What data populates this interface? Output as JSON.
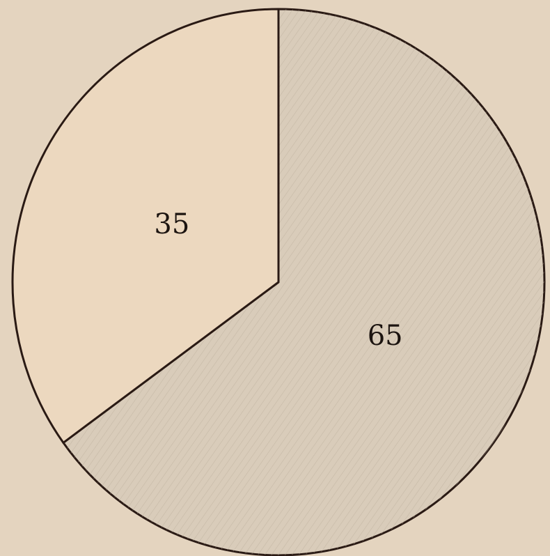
{
  "chart_data": {
    "type": "pie",
    "values": [
      65,
      35
    ],
    "colors": [
      "#d9ccba",
      "#ecd8bf"
    ],
    "start_angle": 0,
    "direction": "clockwise"
  }
}
